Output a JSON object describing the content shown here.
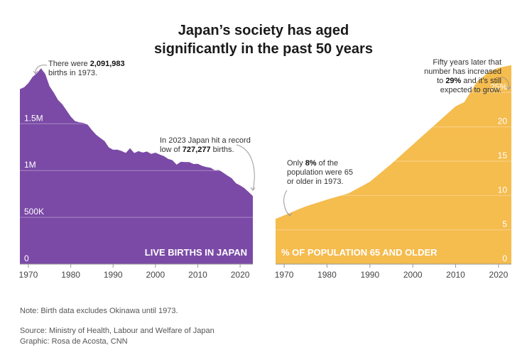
{
  "title_line1": "Japan’s society has aged",
  "title_line2": "significantly in the past 50 years",
  "note": "Note: Birth data excludes Okinawa until 1973.",
  "source": "Source: Ministry of Health, Labour and Welfare of Japan",
  "graphic": "Graphic: Rosa de Acosta, CNN",
  "colors": {
    "births": "#7b4aa6",
    "elderly": "#f5bc4e",
    "axis": "#999999"
  },
  "annotations": {
    "peak": {
      "pre": "There were ",
      "bold": "2,091,983",
      "post": "births in 1973."
    },
    "low": {
      "line1": "In 2023 Japan hit a record",
      "pre": "low of ",
      "bold": "727,277",
      "post": " births."
    },
    "only": {
      "pre": "Only ",
      "bold": "8%",
      "post": " of the",
      "line2": "population were 65",
      "line3": "or older in 1973."
    },
    "fifty": {
      "line1": "Fifty years later that",
      "line2": "number has increased",
      "pre": "to ",
      "bold": "29%",
      "post": " and it’s still",
      "line4": "expected to grow."
    }
  },
  "chart_data": [
    {
      "type": "area",
      "title": "LIVE BIRTHS IN JAPAN",
      "xlabel": "",
      "ylabel": "",
      "xlim": [
        1968,
        2023
      ],
      "ylim": [
        0,
        2200000
      ],
      "xticks": [
        1970,
        1980,
        1990,
        2000,
        2010,
        2020
      ],
      "yticks": [
        0,
        500000,
        1000000,
        1500000
      ],
      "ytick_labels": [
        "0",
        "500K",
        "1M",
        "1.5M"
      ],
      "x": [
        1968,
        1969,
        1970,
        1971,
        1972,
        1973,
        1974,
        1975,
        1976,
        1977,
        1978,
        1979,
        1980,
        1981,
        1982,
        1983,
        1984,
        1985,
        1986,
        1987,
        1988,
        1989,
        1990,
        1991,
        1992,
        1993,
        1994,
        1995,
        1996,
        1997,
        1998,
        1999,
        2000,
        2001,
        2002,
        2003,
        2004,
        2005,
        2006,
        2007,
        2008,
        2009,
        2010,
        2011,
        2012,
        2013,
        2014,
        2015,
        2016,
        2017,
        2018,
        2019,
        2020,
        2021,
        2022,
        2023
      ],
      "y": [
        1870000,
        1890000,
        1934000,
        2001000,
        2039000,
        2091983,
        2030000,
        1901000,
        1833000,
        1755000,
        1709000,
        1643000,
        1577000,
        1529000,
        1515000,
        1509000,
        1490000,
        1432000,
        1383000,
        1347000,
        1314000,
        1247000,
        1222000,
        1223000,
        1209000,
        1188000,
        1238000,
        1187000,
        1207000,
        1192000,
        1203000,
        1178000,
        1191000,
        1171000,
        1154000,
        1124000,
        1111000,
        1063000,
        1093000,
        1090000,
        1091000,
        1070000,
        1071000,
        1051000,
        1037000,
        1030000,
        1004000,
        1006000,
        977000,
        946000,
        918000,
        865000,
        841000,
        812000,
        771000,
        727277
      ]
    },
    {
      "type": "area",
      "title": "% OF POPULATION 65 AND OLDER",
      "xlabel": "",
      "ylabel": "",
      "xlim": [
        1968,
        2023
      ],
      "ylim": [
        0,
        30
      ],
      "xticks": [
        1970,
        1980,
        1990,
        2000,
        2010,
        2020
      ],
      "yticks": [
        0,
        5,
        10,
        15,
        20,
        25
      ],
      "ytick_labels": [
        "0",
        "5",
        "10",
        "15",
        "20",
        "25%"
      ],
      "x": [
        1968,
        1970,
        1973,
        1975,
        1980,
        1985,
        1990,
        1995,
        2000,
        2005,
        2010,
        2012,
        2015,
        2018,
        2020,
        2023
      ],
      "y": [
        6.6,
        7.1,
        7.9,
        8.4,
        9.4,
        10.3,
        12.0,
        14.6,
        17.4,
        20.2,
        23.0,
        23.6,
        26.6,
        28.1,
        28.6,
        29.0
      ]
    }
  ]
}
